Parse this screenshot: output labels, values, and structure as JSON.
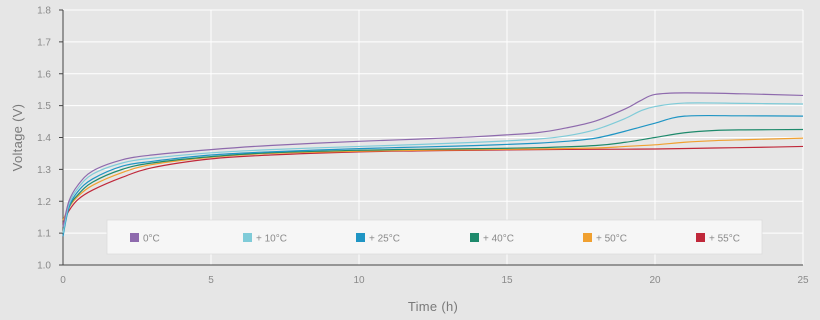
{
  "chart_data": {
    "type": "line",
    "xlabel": "Time (h)",
    "ylabel": "Voltage (V)",
    "xlim": [
      0,
      25
    ],
    "ylim": [
      1.0,
      1.8
    ],
    "xticks": [
      0,
      5,
      10,
      15,
      20,
      25
    ],
    "xtick_labels": [
      "0",
      "5",
      "10",
      "15",
      "20",
      "25"
    ],
    "yticks": [
      1.0,
      1.1,
      1.2,
      1.3,
      1.4,
      1.5,
      1.6,
      1.7,
      1.8
    ],
    "ytick_labels": [
      "1.0",
      "1.1",
      "1.2",
      "1.3",
      "1.4",
      "1.5",
      "1.6",
      "1.7",
      "1.8"
    ],
    "grid": true,
    "legend_position": "bottom-inside",
    "series": [
      {
        "name": "0°C",
        "color": "#8e6aad",
        "points": [
          [
            0,
            1.12
          ],
          [
            0.2,
            1.2
          ],
          [
            0.5,
            1.25
          ],
          [
            1,
            1.295
          ],
          [
            2,
            1.33
          ],
          [
            3,
            1.345
          ],
          [
            5,
            1.362
          ],
          [
            7,
            1.375
          ],
          [
            10,
            1.388
          ],
          [
            12,
            1.395
          ],
          [
            14,
            1.403
          ],
          [
            16,
            1.415
          ],
          [
            17,
            1.43
          ],
          [
            18,
            1.452
          ],
          [
            19,
            1.49
          ],
          [
            19.5,
            1.515
          ],
          [
            20,
            1.535
          ],
          [
            21,
            1.54
          ],
          [
            23,
            1.537
          ],
          [
            25,
            1.532
          ]
        ]
      },
      {
        "name": "+ 10°C",
        "color": "#7fcbd8",
        "points": [
          [
            0,
            1.1
          ],
          [
            0.2,
            1.19
          ],
          [
            0.5,
            1.24
          ],
          [
            1,
            1.285
          ],
          [
            2,
            1.32
          ],
          [
            3,
            1.335
          ],
          [
            5,
            1.352
          ],
          [
            7,
            1.362
          ],
          [
            10,
            1.372
          ],
          [
            12,
            1.378
          ],
          [
            14,
            1.385
          ],
          [
            16,
            1.395
          ],
          [
            17,
            1.405
          ],
          [
            18,
            1.425
          ],
          [
            19,
            1.46
          ],
          [
            19.5,
            1.483
          ],
          [
            20,
            1.497
          ],
          [
            21,
            1.508
          ],
          [
            23,
            1.507
          ],
          [
            25,
            1.505
          ]
        ]
      },
      {
        "name": "+ 25°C",
        "color": "#1f95c4",
        "points": [
          [
            0,
            1.09
          ],
          [
            0.2,
            1.18
          ],
          [
            0.5,
            1.23
          ],
          [
            1,
            1.27
          ],
          [
            2,
            1.31
          ],
          [
            3,
            1.325
          ],
          [
            5,
            1.345
          ],
          [
            7,
            1.355
          ],
          [
            10,
            1.365
          ],
          [
            12,
            1.37
          ],
          [
            14,
            1.375
          ],
          [
            16,
            1.382
          ],
          [
            17,
            1.388
          ],
          [
            18,
            1.398
          ],
          [
            19,
            1.42
          ],
          [
            20,
            1.445
          ],
          [
            21,
            1.467
          ],
          [
            23,
            1.468
          ],
          [
            25,
            1.467
          ]
        ]
      },
      {
        "name": "+ 40°C",
        "color": "#1e8a6c",
        "points": [
          [
            0,
            1.1
          ],
          [
            0.2,
            1.18
          ],
          [
            0.5,
            1.22
          ],
          [
            1,
            1.26
          ],
          [
            2,
            1.3
          ],
          [
            3,
            1.32
          ],
          [
            5,
            1.34
          ],
          [
            7,
            1.352
          ],
          [
            10,
            1.36
          ],
          [
            12,
            1.363
          ],
          [
            14,
            1.365
          ],
          [
            16,
            1.368
          ],
          [
            18,
            1.375
          ],
          [
            19,
            1.385
          ],
          [
            20,
            1.4
          ],
          [
            21,
            1.415
          ],
          [
            22,
            1.422
          ],
          [
            23,
            1.424
          ],
          [
            25,
            1.425
          ]
        ]
      },
      {
        "name": "+ 50°C",
        "color": "#f0a030",
        "points": [
          [
            0,
            1.14
          ],
          [
            0.2,
            1.18
          ],
          [
            0.5,
            1.215
          ],
          [
            1,
            1.25
          ],
          [
            2,
            1.29
          ],
          [
            3,
            1.315
          ],
          [
            5,
            1.338
          ],
          [
            7,
            1.35
          ],
          [
            10,
            1.357
          ],
          [
            12,
            1.36
          ],
          [
            14,
            1.362
          ],
          [
            16,
            1.364
          ],
          [
            18,
            1.367
          ],
          [
            19,
            1.372
          ],
          [
            20,
            1.377
          ],
          [
            21,
            1.385
          ],
          [
            22,
            1.39
          ],
          [
            23,
            1.393
          ],
          [
            25,
            1.398
          ]
        ]
      },
      {
        "name": "+ 55°C",
        "color": "#c0283a",
        "points": [
          [
            0,
            1.13
          ],
          [
            0.2,
            1.17
          ],
          [
            0.5,
            1.205
          ],
          [
            1,
            1.235
          ],
          [
            2,
            1.275
          ],
          [
            3,
            1.305
          ],
          [
            5,
            1.333
          ],
          [
            7,
            1.345
          ],
          [
            10,
            1.355
          ],
          [
            12,
            1.358
          ],
          [
            14,
            1.36
          ],
          [
            16,
            1.362
          ],
          [
            18,
            1.363
          ],
          [
            20,
            1.364
          ],
          [
            22,
            1.367
          ],
          [
            24,
            1.37
          ],
          [
            25,
            1.372
          ]
        ]
      }
    ]
  }
}
